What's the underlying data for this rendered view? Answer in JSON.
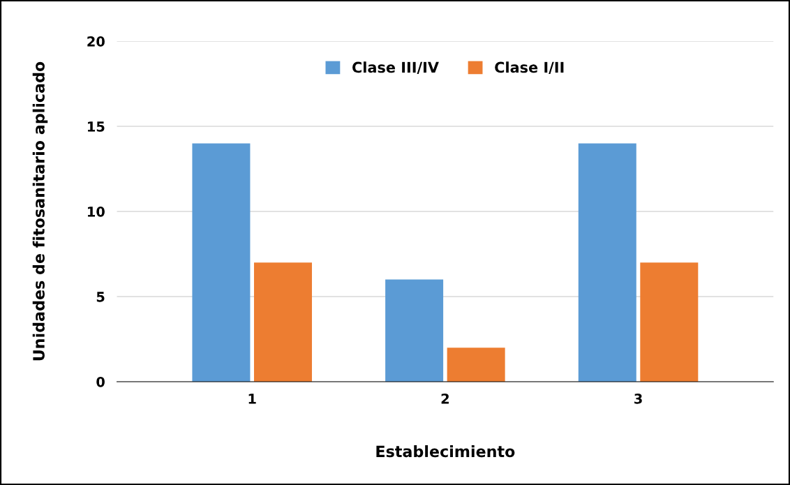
{
  "chart_data": {
    "type": "bar",
    "xlabel": "Establecimiento",
    "ylabel": "Unidades de fitosanitario aplicado",
    "categories": [
      "1",
      "2",
      "3"
    ],
    "series": [
      {
        "name": "Clase III/IV",
        "color": "#5b9bd5",
        "values": [
          14,
          6,
          14
        ]
      },
      {
        "name": "Clase I/II",
        "color": "#ed7d31",
        "values": [
          7,
          2,
          7
        ]
      }
    ],
    "ylim": [
      0,
      20
    ],
    "yticks": [
      0,
      5,
      10,
      15,
      20
    ],
    "grid": "y",
    "legend": "top"
  }
}
